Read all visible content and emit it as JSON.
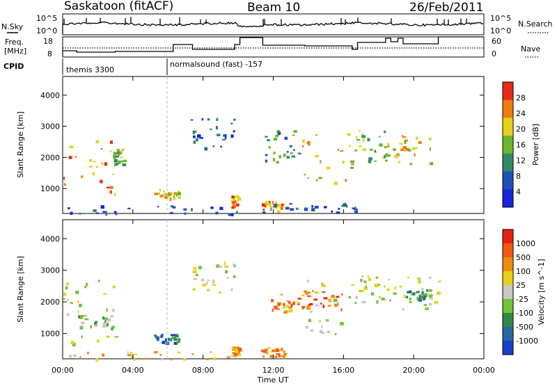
{
  "header": {
    "station": "Saskatoon (fitACF)",
    "beam": "Beam 10",
    "date": "26/Feb/2011"
  },
  "top_panels": {
    "nsky_label": "N.Sky",
    "nsearch_label": "N.Search",
    "freq_label_1": "Freq.",
    "freq_label_2": "[MHz]",
    "nave_label": "Nave",
    "cpid_label": "CPID",
    "sky_ticks": [
      "10^5",
      "10^0"
    ],
    "search_ticks": [
      "10^5",
      "10^0"
    ],
    "freq_ticks": [
      "18",
      "8"
    ],
    "nave_ticks": [
      "60",
      "0"
    ],
    "cpid_segments": [
      {
        "label": "themis 3300",
        "start": 0.0,
        "end": 5.95
      },
      {
        "label": "normalsound (fast) -157",
        "start": 5.95,
        "end": 24.0
      }
    ]
  },
  "chart_data": [
    {
      "type": "heatmap",
      "name": "power",
      "ylabel": "Slant Range [km]",
      "yticks": [
        1000,
        2000,
        3000,
        4000
      ],
      "ylim": [
        200,
        4600
      ],
      "xlim": [
        0,
        24
      ],
      "colorbar_label": "Power [dB]",
      "colorbar_ticks": [
        "4",
        "8",
        "12",
        "16",
        "20",
        "24",
        "28"
      ],
      "colors": [
        "#1a25e0",
        "#1f4fb8",
        "#2e8a64",
        "#6fb52e",
        "#e6d21a",
        "#f07c10",
        "#e8281a"
      ],
      "blobs": [
        {
          "t0": 0.0,
          "t1": 3.2,
          "r0": 700,
          "r1": 2800,
          "level": 5
        },
        {
          "t0": 2.8,
          "t1": 3.5,
          "r0": 1800,
          "r1": 2300,
          "level": 3
        },
        {
          "t0": 5.2,
          "t1": 6.6,
          "r0": 700,
          "r1": 1000,
          "level": 4
        },
        {
          "t0": 7.2,
          "t1": 9.8,
          "r0": 2300,
          "r1": 3300,
          "level": 1
        },
        {
          "t0": 9.6,
          "t1": 10.0,
          "r0": 400,
          "r1": 800,
          "level": 5
        },
        {
          "t0": 11.3,
          "t1": 12.6,
          "r0": 300,
          "r1": 600,
          "level": 5
        },
        {
          "t0": 11.5,
          "t1": 13.5,
          "r0": 1700,
          "r1": 3000,
          "level": 2
        },
        {
          "t0": 13.5,
          "t1": 16.8,
          "r0": 1200,
          "r1": 2800,
          "level": 4
        },
        {
          "t0": 16.8,
          "t1": 18.6,
          "r0": 1900,
          "r1": 2900,
          "level": 3
        },
        {
          "t0": 18.6,
          "t1": 21.4,
          "r0": 1800,
          "r1": 2800,
          "level": 4
        },
        {
          "t0": 0.0,
          "t1": 10.0,
          "r0": 200,
          "r1": 500,
          "level": 1
        },
        {
          "t0": 11.3,
          "t1": 17.5,
          "r0": 250,
          "r1": 550,
          "level": 1
        }
      ]
    },
    {
      "type": "heatmap",
      "name": "velocity",
      "ylabel": "Slant Range [km]",
      "yticks": [
        1000,
        2000,
        3000,
        4000
      ],
      "ylim": [
        200,
        4600
      ],
      "xlim": [
        0,
        24
      ],
      "colorbar_label": "Velocity [m s^-1]",
      "colorbar_ticks": [
        "1000",
        "500",
        "100",
        "25",
        "-25",
        "-100",
        "-500",
        "-1000"
      ],
      "colors": [
        "#1a3fc8",
        "#2668a0",
        "#2f8a48",
        "#74c236",
        "#c8c8c0",
        "#e8d01a",
        "#f08a10",
        "#f05a10",
        "#e82010"
      ],
      "blobs": [
        {
          "t0": 0.0,
          "t1": 3.0,
          "r0": 700,
          "r1": 2700,
          "level": 4
        },
        {
          "t0": 0.8,
          "t1": 2.8,
          "r0": 1200,
          "r1": 1600,
          "level": 3
        },
        {
          "t0": 5.2,
          "t1": 6.6,
          "r0": 700,
          "r1": 1000,
          "level": 1
        },
        {
          "t0": 7.2,
          "t1": 9.8,
          "r0": 2300,
          "r1": 3300,
          "level": 4
        },
        {
          "t0": 9.6,
          "t1": 10.0,
          "r0": 300,
          "r1": 600,
          "level": 6
        },
        {
          "t0": 11.3,
          "t1": 12.6,
          "r0": 300,
          "r1": 600,
          "level": 6
        },
        {
          "t0": 11.5,
          "t1": 13.5,
          "r0": 1700,
          "r1": 2300,
          "level": 6
        },
        {
          "t0": 13.5,
          "t1": 16.0,
          "r0": 1800,
          "r1": 2400,
          "level": 7
        },
        {
          "t0": 13.5,
          "t1": 16.8,
          "r0": 1000,
          "r1": 2800,
          "level": 4
        },
        {
          "t0": 16.8,
          "t1": 18.6,
          "r0": 1900,
          "r1": 2900,
          "level": 4
        },
        {
          "t0": 18.6,
          "t1": 21.4,
          "r0": 1800,
          "r1": 2800,
          "level": 4
        },
        {
          "t0": 19.5,
          "t1": 21.0,
          "r0": 2100,
          "r1": 2400,
          "level": 2
        },
        {
          "t0": 0.0,
          "t1": 10.0,
          "r0": 200,
          "r1": 450,
          "level": 5
        }
      ]
    }
  ],
  "x_axis": {
    "label": "Time UT",
    "ticks": [
      "00:00",
      "04:00",
      "08:00",
      "12:00",
      "16:00",
      "20:00",
      "00:00"
    ]
  }
}
